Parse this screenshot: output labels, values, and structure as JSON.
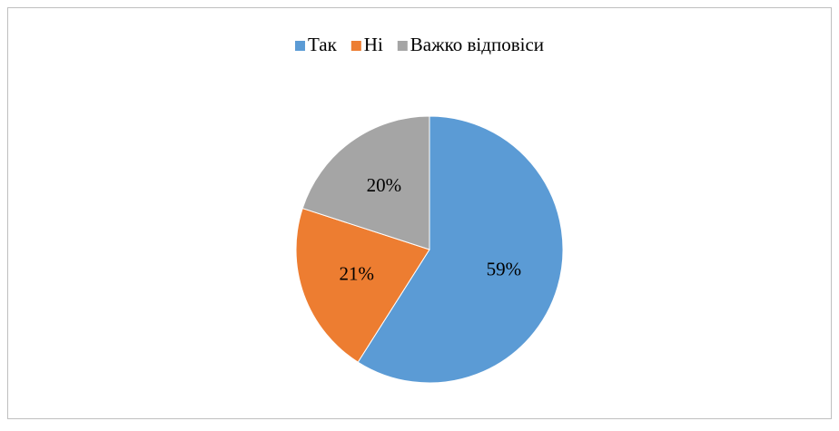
{
  "chart_data": {
    "type": "pie",
    "categories": [
      "Так",
      "Ні",
      "Важко відповіси"
    ],
    "values": [
      59,
      21,
      20
    ],
    "value_labels": [
      "59%",
      "21%",
      "20%"
    ],
    "colors": [
      "#5b9bd5",
      "#ed7d31",
      "#a5a5a5"
    ],
    "legend": "top"
  }
}
